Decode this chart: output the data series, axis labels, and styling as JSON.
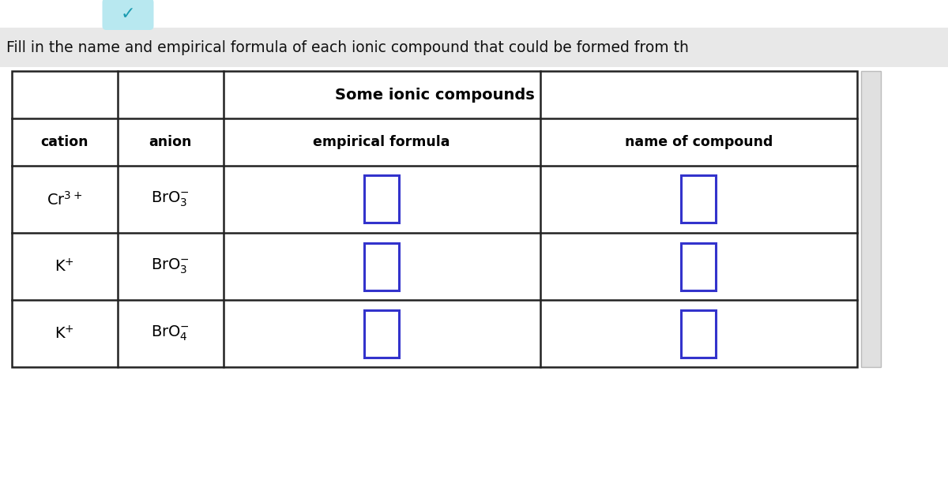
{
  "title_text": "Fill in the name and empirical formula of each ionic compound that could be formed from th",
  "table_title": "Some ionic compounds",
  "col_headers": [
    "cation",
    "anion",
    "empirical formula",
    "name of compound"
  ],
  "rows": [
    {
      "cation": "Cr$^{3+}$",
      "anion": "BrO$_3^{-}$"
    },
    {
      "cation": "K$^{+}$",
      "anion": "BrO$_3^{-}$"
    },
    {
      "cation": "K$^{+}$",
      "anion": "BrO$_4^{-}$"
    }
  ],
  "bg_color": "#ffffff",
  "table_border_color": "#222222",
  "input_box_color": "#3333cc",
  "chevron_bg": "#b8e8f0",
  "chevron_color": "#1a9bb0",
  "banner_bg": "#e8e8e8",
  "banner_text_color": "#111111"
}
